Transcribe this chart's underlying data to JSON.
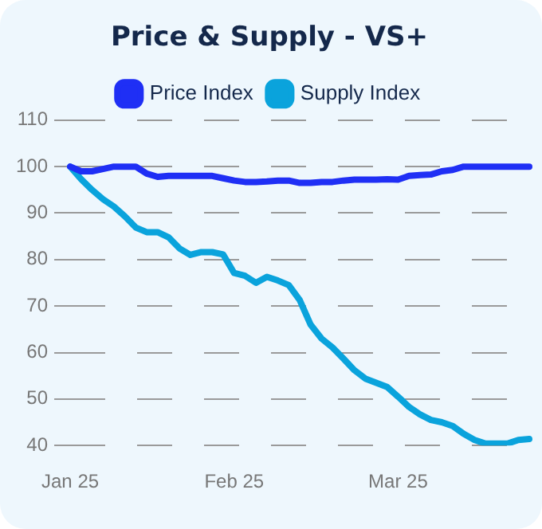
{
  "chart_data": {
    "type": "line",
    "title": "Price & Supply - VS+",
    "categories": [
      "Jan 25",
      null,
      null,
      null,
      null,
      null,
      null,
      null,
      null,
      null,
      null,
      null,
      null,
      null,
      null,
      "Feb 25",
      null,
      null,
      null,
      null,
      null,
      null,
      null,
      null,
      null,
      null,
      null,
      null,
      null,
      null,
      "Mar 25",
      null,
      null,
      null,
      null,
      null,
      null,
      null,
      null,
      null,
      null,
      null,
      null
    ],
    "series": [
      {
        "name": "Price Index",
        "color": "#1f2ff5",
        "values": [
          100,
          99,
          99,
          99.5,
          100,
          100,
          100,
          98.5,
          97.8,
          98,
          98,
          98,
          98,
          98,
          97.5,
          97,
          96.7,
          96.7,
          96.8,
          97,
          97,
          96.5,
          96.5,
          96.7,
          96.7,
          97,
          97.2,
          97.2,
          97.2,
          97.3,
          97.2,
          98,
          98.2,
          98.3,
          99,
          99.3,
          100,
          100,
          100,
          100,
          100,
          100,
          100
        ]
      },
      {
        "name": "Supply Index",
        "color": "#0aa3dc",
        "values": [
          100,
          97.3,
          95,
          93,
          91.4,
          89.3,
          86.9,
          85.9,
          85.9,
          84.8,
          82.4,
          81,
          81.6,
          81.6,
          81.1,
          77.1,
          76.5,
          75,
          76.3,
          75.5,
          74.5,
          71.3,
          66,
          63,
          61.1,
          58.7,
          56.2,
          54.4,
          53.5,
          52.6,
          50.5,
          48.3,
          46.7,
          45.5,
          45,
          44.2,
          42.5,
          41.2,
          40.4,
          40.4,
          40.4,
          41.2,
          41.4
        ]
      }
    ],
    "ylim": [
      40,
      110
    ],
    "yticks": [
      40,
      50,
      60,
      70,
      80,
      90,
      100,
      110
    ],
    "grid": "y",
    "legend": "top",
    "marker": "none"
  }
}
